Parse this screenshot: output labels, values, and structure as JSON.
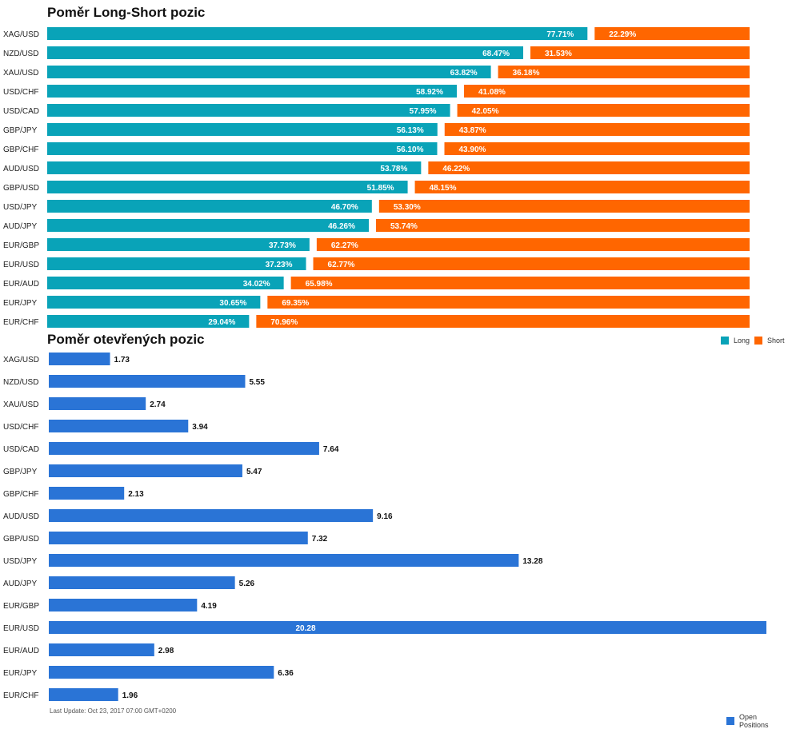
{
  "colors": {
    "long": "#09a3b8",
    "short": "#ff6600",
    "open": "#2a74d6"
  },
  "chart_data": [
    {
      "type": "bar",
      "orientation": "horizontal",
      "stacked": true,
      "title": "Poměr Long-Short pozic",
      "categories": [
        "XAG/USD",
        "NZD/USD",
        "XAU/USD",
        "USD/CHF",
        "USD/CAD",
        "GBP/JPY",
        "GBP/CHF",
        "AUD/USD",
        "GBP/USD",
        "USD/JPY",
        "AUD/JPY",
        "EUR/GBP",
        "EUR/USD",
        "EUR/AUD",
        "EUR/JPY",
        "EUR/CHF"
      ],
      "series": [
        {
          "name": "Long",
          "values": [
            77.71,
            68.47,
            63.82,
            58.92,
            57.95,
            56.13,
            56.1,
            53.78,
            51.85,
            46.7,
            46.26,
            37.73,
            37.23,
            34.02,
            30.65,
            29.04
          ],
          "labels": [
            "77.71%",
            "68.47%",
            "63.82%",
            "58.92%",
            "57.95%",
            "56.13%",
            "56.10%",
            "53.78%",
            "51.85%",
            "46.70%",
            "46.26%",
            "37.73%",
            "37.23%",
            "34.02%",
            "30.65%",
            "29.04%"
          ]
        },
        {
          "name": "Short",
          "values": [
            22.29,
            31.53,
            36.18,
            41.08,
            42.05,
            43.87,
            43.9,
            46.22,
            48.15,
            53.3,
            53.74,
            62.27,
            62.77,
            65.98,
            69.35,
            70.96
          ],
          "labels": [
            "22.29%",
            "31.53%",
            "36.18%",
            "41.08%",
            "42.05%",
            "43.87%",
            "43.90%",
            "46.22%",
            "48.15%",
            "53.30%",
            "53.74%",
            "62.27%",
            "62.77%",
            "65.98%",
            "69.35%",
            "70.96%"
          ]
        }
      ],
      "xlim": [
        0,
        100
      ],
      "legend": "bottom-right"
    },
    {
      "type": "bar",
      "orientation": "horizontal",
      "title": "Poměr otevřených pozic",
      "categories": [
        "XAG/USD",
        "NZD/USD",
        "XAU/USD",
        "USD/CHF",
        "USD/CAD",
        "GBP/JPY",
        "GBP/CHF",
        "AUD/USD",
        "GBP/USD",
        "USD/JPY",
        "AUD/JPY",
        "EUR/GBP",
        "EUR/USD",
        "EUR/AUD",
        "EUR/JPY",
        "EUR/CHF"
      ],
      "series": [
        {
          "name": "Open Positions",
          "values": [
            1.73,
            5.55,
            2.74,
            3.94,
            7.64,
            5.47,
            2.13,
            9.16,
            7.32,
            13.28,
            5.26,
            4.19,
            20.28,
            2.98,
            6.36,
            1.96
          ],
          "labels": [
            "1.73",
            "5.55",
            "2.74",
            "3.94",
            "7.64",
            "5.47",
            "2.13",
            "9.16",
            "7.32",
            "13.28",
            "5.26",
            "4.19",
            "20.28",
            "2.98",
            "6.36",
            "1.96"
          ]
        }
      ],
      "legend": "bottom-right"
    }
  ],
  "legend": {
    "long": "Long",
    "short": "Short",
    "open": "Open Positions"
  },
  "footer": {
    "last_update": "Last Update: Oct 23, 2017 07:00 GMT+0200"
  }
}
